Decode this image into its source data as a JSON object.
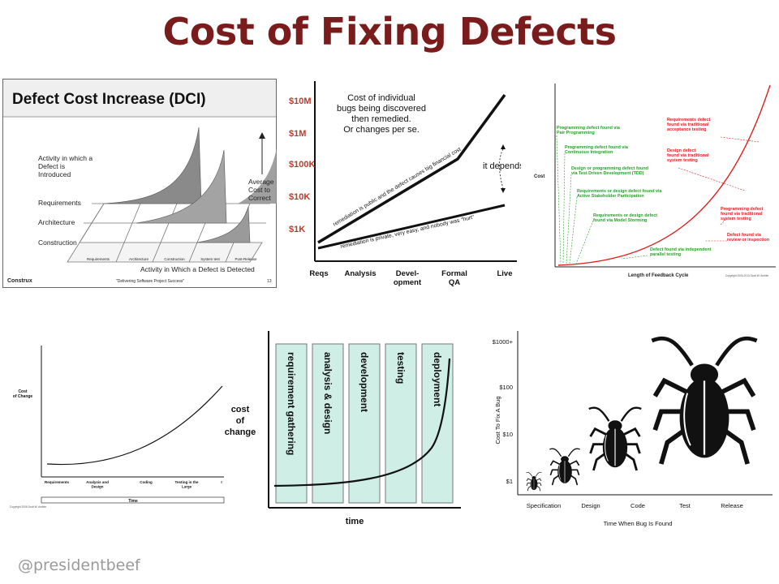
{
  "slide": {
    "title": "Cost of Fixing Defects",
    "credit": "@presidentbeef"
  },
  "colors": {
    "title": "#7a1c1c",
    "money_red": "#c0392b",
    "curve_red": "#e02020",
    "green_note": "#2a9d2a",
    "phase_fill": "#cfeee6"
  },
  "dci": {
    "title": "Defect Cost Increase (DCI)",
    "y_note": "Activity in which a Defect is Introduced",
    "rows": [
      "Requirements",
      "Architecture",
      "Construction"
    ],
    "side_label": "Average Cost to Correct",
    "x_ticks": [
      "Requirements",
      "Architecture",
      "Construction",
      "System test",
      "Post-Release"
    ],
    "x_label": "Activity in Which a Defect is Detected",
    "footer_left": "Construx",
    "footer_center": "\"Delivering Software Project Success\"",
    "footer_right": "13"
  },
  "depends": {
    "y_ticks": [
      "$10M",
      "$1M",
      "$100K",
      "$10K",
      "$1K"
    ],
    "note_lines": [
      "Cost of individual",
      "bugs being discovered",
      "then remedied.",
      "Or changes per se."
    ],
    "upper_line_label": "remediation is public and the defect causes big financial cost",
    "lower_line_label": "remediation is private, very easy, and nobody was \"hurt\"",
    "depends_label": "it depends!",
    "x_ticks": [
      [
        "Reqs"
      ],
      [
        "Analysis"
      ],
      [
        "Devel-",
        "opment"
      ],
      [
        "Formal",
        "QA"
      ],
      [
        "Live"
      ]
    ]
  },
  "feedback": {
    "y_label": "Cost",
    "x_label": "Length of Feedback Cycle",
    "copyright": "Copyright 2006-2013 Scott W. Ambler",
    "green_notes": [
      [
        "Programming defect found via",
        "Pair Programming"
      ],
      [
        "Programming defect found via",
        "Continuous Integration"
      ],
      [
        "Design or programming defect found",
        "via Test Driven Development (TDD)"
      ],
      [
        "Requirements or design defect found via",
        "Active Stakeholder Participation"
      ],
      [
        "Requirements or design defect",
        "found via Model Storming"
      ],
      [
        "Defect found via independent",
        "parallel testing"
      ]
    ],
    "red_notes": [
      [
        "Requirements defect",
        "found via traditional",
        "acceptance testing"
      ],
      [
        "Design defect",
        "found via traditional",
        "system testing"
      ],
      [
        "Programming defect",
        "found via traditional",
        "system testing"
      ],
      [
        "Defect found via",
        "review or inspection"
      ]
    ]
  },
  "change": {
    "y_label": [
      "Cost",
      "of Change"
    ],
    "x_ticks": [
      [
        "Requirements"
      ],
      [
        "Analysis and",
        "Design"
      ],
      [
        "Coding"
      ],
      [
        "Testing in the",
        "Large"
      ],
      [
        "I"
      ]
    ],
    "x_label": "Time",
    "copyright": "Copyright 2006 Scott W. Ambler"
  },
  "phases": {
    "y_label": [
      "cost",
      "of",
      "change"
    ],
    "columns": [
      "requirement gathering",
      "analysis & design",
      "development",
      "testing",
      "deployment"
    ],
    "x_label": "time"
  },
  "bugs": {
    "y_ticks": [
      "$1000+",
      "$100",
      "$10",
      "$1"
    ],
    "y_label": "Cost To Fix A Bug",
    "x_ticks": [
      "Specification",
      "Design",
      "Code",
      "Test",
      "Release"
    ],
    "x_label": "Time When Bug Is Found"
  }
}
